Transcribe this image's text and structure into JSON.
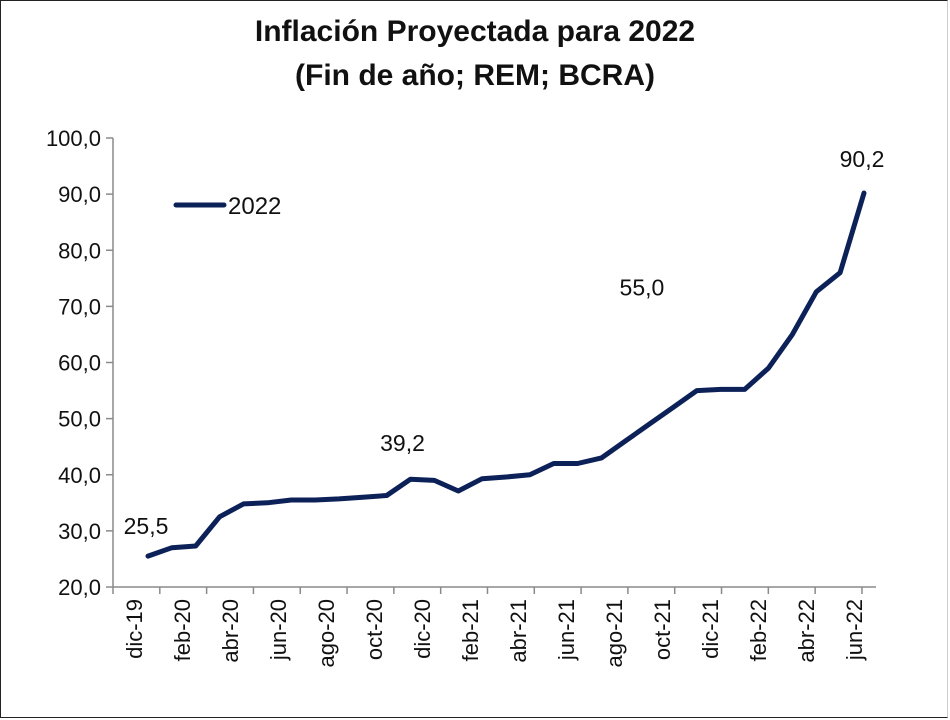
{
  "chart_data": {
    "type": "line",
    "title": "Inflación Proyectada para 2022",
    "subtitle": "(Fin de año; REM; BCRA)",
    "xlabel": "",
    "ylabel": "",
    "ylim": [
      20,
      100
    ],
    "yticks": [
      "20,0",
      "30,0",
      "40,0",
      "50,0",
      "60,0",
      "70,0",
      "80,0",
      "90,0",
      "100,0"
    ],
    "ytick_values": [
      20,
      30,
      40,
      50,
      60,
      70,
      80,
      90,
      100
    ],
    "x_tick_labels": [
      "dic-19",
      "feb-20",
      "abr-20",
      "jun-20",
      "ago-20",
      "oct-20",
      "dic-20",
      "feb-21",
      "abr-21",
      "jun-21",
      "ago-21",
      "oct-21",
      "dic-21",
      "feb-22",
      "abr-22",
      "jun-22"
    ],
    "legend": {
      "position": "top-left",
      "entries": [
        "2022"
      ]
    },
    "color": "#0d2159",
    "series": [
      {
        "name": "2022",
        "values": [
          25.5,
          27.0,
          27.3,
          32.5,
          34.8,
          35.0,
          35.5,
          35.5,
          35.7,
          36.0,
          36.3,
          39.2,
          39.0,
          37.1,
          39.3,
          39.6,
          40.0,
          42.0,
          42.0,
          43.0,
          46.0,
          49.0,
          52.0,
          55.0,
          55.2,
          55.2,
          59.0,
          65.0,
          72.6,
          76.0,
          90.2
        ]
      }
    ],
    "annotations": [
      {
        "index": 0,
        "text": "25,5"
      },
      {
        "index": 11,
        "text": "39,2"
      },
      {
        "index": 23,
        "text": "55,0"
      },
      {
        "index": 30,
        "text": "90,2"
      }
    ]
  }
}
